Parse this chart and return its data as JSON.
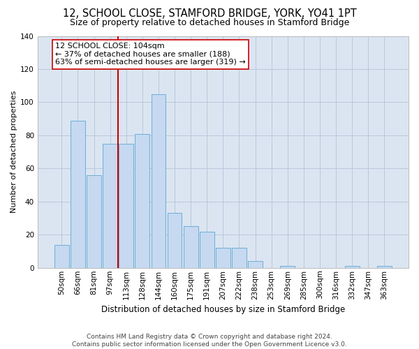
{
  "title": "12, SCHOOL CLOSE, STAMFORD BRIDGE, YORK, YO41 1PT",
  "subtitle": "Size of property relative to detached houses in Stamford Bridge",
  "xlabel": "Distribution of detached houses by size in Stamford Bridge",
  "ylabel": "Number of detached properties",
  "bar_labels": [
    "50sqm",
    "66sqm",
    "81sqm",
    "97sqm",
    "113sqm",
    "128sqm",
    "144sqm",
    "160sqm",
    "175sqm",
    "191sqm",
    "207sqm",
    "222sqm",
    "238sqm",
    "253sqm",
    "269sqm",
    "285sqm",
    "300sqm",
    "316sqm",
    "332sqm",
    "347sqm",
    "363sqm"
  ],
  "bar_values": [
    14,
    89,
    56,
    75,
    75,
    81,
    105,
    33,
    25,
    22,
    12,
    12,
    4,
    0,
    1,
    0,
    0,
    0,
    1,
    0,
    1
  ],
  "bar_color": "#c6d9f1",
  "bar_edge_color": "#6baed6",
  "grid_color": "#b8c8dc",
  "background_color": "#dbe5f1",
  "vline_index": 4,
  "vline_color": "#cc0000",
  "annotation_text": "12 SCHOOL CLOSE: 104sqm\n← 37% of detached houses are smaller (188)\n63% of semi-detached houses are larger (319) →",
  "annotation_box_color": "#ffffff",
  "annotation_box_edge": "#cc0000",
  "ylim": [
    0,
    140
  ],
  "yticks": [
    0,
    20,
    40,
    60,
    80,
    100,
    120,
    140
  ],
  "footer_text": "Contains HM Land Registry data © Crown copyright and database right 2024.\nContains public sector information licensed under the Open Government Licence v3.0.",
  "title_fontsize": 10.5,
  "subtitle_fontsize": 9,
  "xlabel_fontsize": 8.5,
  "ylabel_fontsize": 8,
  "tick_fontsize": 7.5,
  "annotation_fontsize": 8,
  "footer_fontsize": 6.5
}
